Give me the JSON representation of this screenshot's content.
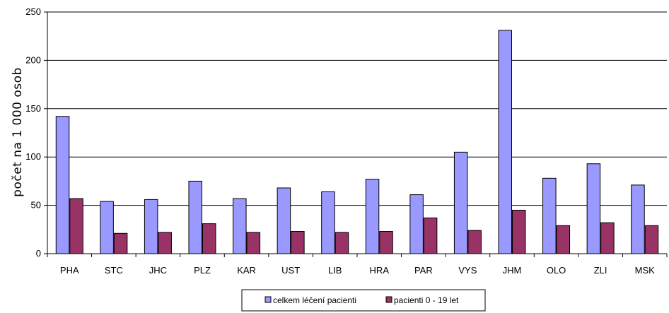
{
  "chart_data": {
    "type": "bar",
    "title": "",
    "xlabel": "",
    "ylabel": "počet na 1 000 osob",
    "ylim": [
      0,
      250
    ],
    "yticks": [
      0,
      50,
      100,
      150,
      200,
      250
    ],
    "grid": true,
    "legend_position": "bottom",
    "categories": [
      "PHA",
      "STC",
      "JHC",
      "PLZ",
      "KAR",
      "UST",
      "LIB",
      "HRA",
      "PAR",
      "VYS",
      "JHM",
      "OLO",
      "ZLI",
      "MSK"
    ],
    "series": [
      {
        "name": "celkem léčení pacienti",
        "color": "#9999FF",
        "values": [
          142,
          54,
          56,
          75,
          57,
          68,
          64,
          77,
          61,
          105,
          231,
          78,
          93,
          71
        ]
      },
      {
        "name": "pacienti 0 - 19 let",
        "color": "#993366",
        "values": [
          57,
          21,
          22,
          31,
          22,
          23,
          22,
          23,
          37,
          24,
          45,
          29,
          32,
          29
        ]
      }
    ]
  }
}
